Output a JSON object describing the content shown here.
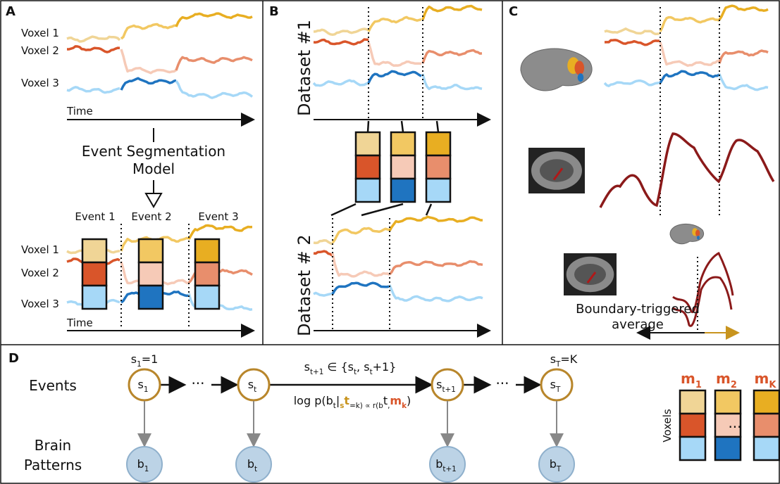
{
  "panel_labels": [
    "A",
    "B",
    "C",
    "D"
  ],
  "panel_a": {
    "voxel_labels": [
      "Voxel 1",
      "Voxel 2",
      "Voxel 3"
    ],
    "time_label": "Time",
    "model_label": [
      "Event Segmentation",
      "Model"
    ],
    "event_labels": [
      "Event 1",
      "Event 2",
      "Event 3"
    ],
    "voxel_labels_bottom": [
      "Voxel 1",
      "Voxel 2",
      "Voxel 3"
    ],
    "time_label_bottom": "Time"
  },
  "panel_b": {
    "dataset_labels": [
      "Dataset #1",
      "Dataset # 2"
    ]
  },
  "panel_c": {
    "caption": [
      "Boundary-triggered",
      "average"
    ]
  },
  "panel_d": {
    "events_label": "Events",
    "patterns_label": [
      "Brain",
      "Patterns"
    ],
    "first_state": [
      "s",
      "1",
      "=1"
    ],
    "last_state": [
      "s",
      "T",
      "=K"
    ],
    "event_nodes": [
      [
        "s",
        "1"
      ],
      [
        "s",
        "t"
      ],
      [
        "s",
        "t+1"
      ],
      [
        "s",
        "T"
      ]
    ],
    "pattern_nodes": [
      [
        "b",
        "1"
      ],
      [
        "b",
        "t"
      ],
      [
        "b",
        "t+1"
      ],
      [
        "b",
        "T"
      ]
    ],
    "ellipsis": [
      "···",
      "···"
    ],
    "transition": [
      "s",
      "t+1",
      " ∈ {s",
      "t",
      ", s",
      "t",
      "+1}"
    ],
    "likelihood": [
      "log p(b",
      "t",
      "|",
      "s",
      "t",
      "=k) ∝ r(b",
      "t",
      ",",
      "m",
      "k",
      ")"
    ],
    "voxels_label": "Voxels",
    "means": [
      [
        "m",
        "1"
      ],
      [
        "m",
        "2"
      ],
      [
        "m",
        "K"
      ]
    ],
    "means_ellipsis": "..."
  }
}
